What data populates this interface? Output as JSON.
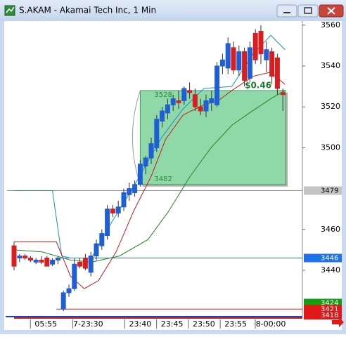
{
  "window": {
    "title": "S.AKAM - Akamai Tech Inc, 1 Min"
  },
  "chart_data": {
    "type": "candlestick",
    "up_color": "#1f5fd6",
    "down_color": "#d81e1e",
    "open": [
      3452,
      3446,
      3447,
      3446,
      3444,
      3445,
      3446,
      3443,
      3445,
      3421,
      3429,
      3431,
      3444,
      3446,
      3439,
      3447,
      3452,
      3457,
      3470,
      3468,
      3471,
      3477,
      3478,
      3482,
      3491,
      3495,
      3500,
      3513,
      3517,
      3521,
      3523,
      3523,
      3528,
      3526,
      3520,
      3518,
      3522,
      3521,
      3540,
      3539,
      3549,
      3538,
      3547,
      3534,
      3556,
      3557,
      3543,
      3547,
      3544,
      3527
    ],
    "high": [
      3454,
      3448,
      3448,
      3447,
      3446,
      3447,
      3447,
      3446,
      3447,
      3430,
      3433,
      3446,
      3446,
      3448,
      3449,
      3455,
      3460,
      3472,
      3472,
      3474,
      3480,
      3483,
      3484,
      3494,
      3496,
      3505,
      3516,
      3520,
      3524,
      3526,
      3528,
      3530,
      3532,
      3529,
      3524,
      3526,
      3528,
      3542,
      3546,
      3554,
      3552,
      3550,
      3549,
      3552,
      3558,
      3560,
      3552,
      3549,
      3546,
      3529
    ],
    "low": [
      3440,
      3444,
      3445,
      3444,
      3443,
      3443,
      3442,
      3442,
      3443,
      3420,
      3427,
      3430,
      3441,
      3440,
      3437,
      3445,
      3450,
      3455,
      3466,
      3466,
      3469,
      3474,
      3476,
      3481,
      3487,
      3492,
      3498,
      3510,
      3514,
      3518,
      3519,
      3521,
      3524,
      3518,
      3516,
      3515,
      3518,
      3520,
      3536,
      3536,
      3536,
      3535,
      3530,
      3532,
      3541,
      3541,
      3537,
      3531,
      3526,
      3518
    ],
    "close": [
      3442,
      3447,
      3446,
      3445,
      3445,
      3444,
      3442,
      3445,
      3446,
      3429,
      3431,
      3443,
      3442,
      3441,
      3447,
      3453,
      3458,
      3470,
      3468,
      3471,
      3478,
      3480,
      3482,
      3492,
      3495,
      3502,
      3514,
      3518,
      3521,
      3524,
      3522,
      3529,
      3527,
      3520,
      3518,
      3523,
      3524,
      3540,
      3543,
      3551,
      3538,
      3547,
      3533,
      3549,
      3543,
      3546,
      3548,
      3535,
      3529,
      3526
    ],
    "xticks": [
      {
        "value": 5.8,
        "label": "05:55"
      },
      {
        "value": 13.5,
        "label": "7-23:30"
      },
      {
        "value": 23,
        "label": "23:40"
      },
      {
        "value": 28.8,
        "label": "23:45"
      },
      {
        "value": 34.6,
        "label": "23:50"
      },
      {
        "value": 40.4,
        "label": "23:55"
      },
      {
        "value": 46.8,
        "label": "8-00:00"
      }
    ],
    "ylim": [
      3418,
      3562
    ],
    "yticks": [
      3440,
      3460,
      3500,
      3520,
      3540,
      3560
    ],
    "ma": [
      {
        "color": "#1e8ad6",
        "x": [
          0,
          7,
          8.7,
          10.3,
          14.1,
          17.9,
          21.8,
          26.9,
          30.8,
          34.6,
          39.7,
          43.6,
          46.8,
          49.4
        ],
        "values": [
          3479,
          3479,
          3447,
          3446,
          3446,
          3464,
          3481,
          3505,
          3519,
          3529,
          3530,
          3546,
          3555,
          3548
        ]
      },
      {
        "color": "#c81818",
        "x": [
          0,
          7.7,
          10.3,
          12.8,
          15.4,
          18.6,
          21.8,
          25,
          27.6,
          30.8,
          34.6,
          37.2,
          39.7,
          43.6,
          46.8,
          49.4
        ],
        "values": [
          3454,
          3454,
          3437,
          3431,
          3435,
          3449,
          3469,
          3486,
          3504,
          3516,
          3521,
          3523,
          3528,
          3535,
          3537,
          3531
        ]
      },
      {
        "color": "#1e8a1e",
        "x": [
          0,
          5.1,
          10.3,
          14.1,
          19.2,
          24.4,
          28.2,
          32.1,
          35.9,
          39.7,
          42.9,
          46.8,
          49.4
        ],
        "values": [
          3450,
          3449,
          3445,
          3444,
          3447,
          3455,
          3469,
          3486,
          3500,
          3511,
          3517,
          3524,
          3528
        ]
      }
    ],
    "hlines": [
      {
        "value": 3479,
        "color": "#909090",
        "x_start": 0
      },
      {
        "value": 3446,
        "color": "#1e73e8",
        "x_start": 9
      },
      {
        "value": 3421,
        "color": "#d81e1e",
        "x_start": 9
      }
    ],
    "price_markers": [
      {
        "value": 3479,
        "color": "#c4c4c4"
      },
      {
        "value": 3446,
        "color": "#1e73e8"
      },
      {
        "value": 3424,
        "color": "#12a012"
      },
      {
        "value": 3421,
        "color": "#e01818"
      },
      {
        "value": 3418,
        "color": "#e01818"
      }
    ],
    "annotation": {
      "top": 3528,
      "bottom": 3482,
      "x_start": 23,
      "x_end": 49.5,
      "label": "$0.46",
      "color": "#8fd9a8"
    }
  }
}
